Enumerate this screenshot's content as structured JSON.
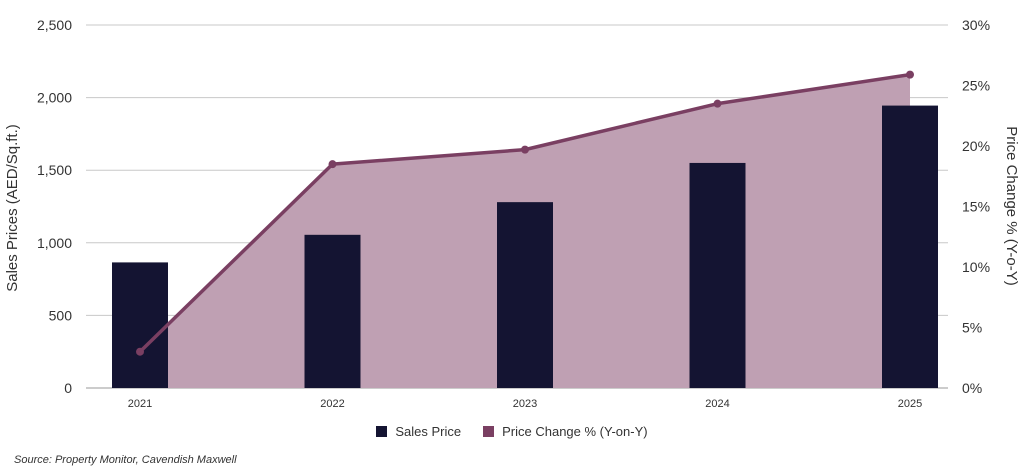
{
  "chart_data": {
    "type": "bar",
    "categories": [
      "2021",
      "2022",
      "2023",
      "2024",
      "2025"
    ],
    "series": [
      {
        "name": "Sales Price",
        "type": "bar",
        "axis": "left",
        "color": "#141432",
        "values": [
          865,
          1055,
          1280,
          1550,
          1945
        ]
      },
      {
        "name": "Price Change % (Y-on-Y)",
        "type": "line+area",
        "axis": "right",
        "color": "#7a3f62",
        "area_color": "#bfa0b3",
        "values": [
          3.0,
          18.5,
          19.7,
          23.5,
          25.9
        ]
      }
    ],
    "ylabel": "Sales Prices (AED/Sq.ft.)",
    "y2label": "Price Change % (Y-o-Y)",
    "ylim": [
      0,
      2500
    ],
    "y2lim": [
      0,
      30
    ],
    "y_ticks": [
      "0",
      "500",
      "1,000",
      "1,500",
      "2,000",
      "2,500"
    ],
    "y2_ticks": [
      "0%",
      "5%",
      "10%",
      "15%",
      "20%",
      "25%",
      "30%"
    ],
    "grid": true,
    "legend_position": "bottom-center"
  },
  "legend": {
    "bar_label": "Sales Price",
    "line_label": "Price Change % (Y-on-Y)"
  },
  "source": "Source: Property Monitor, Cavendish Maxwell"
}
